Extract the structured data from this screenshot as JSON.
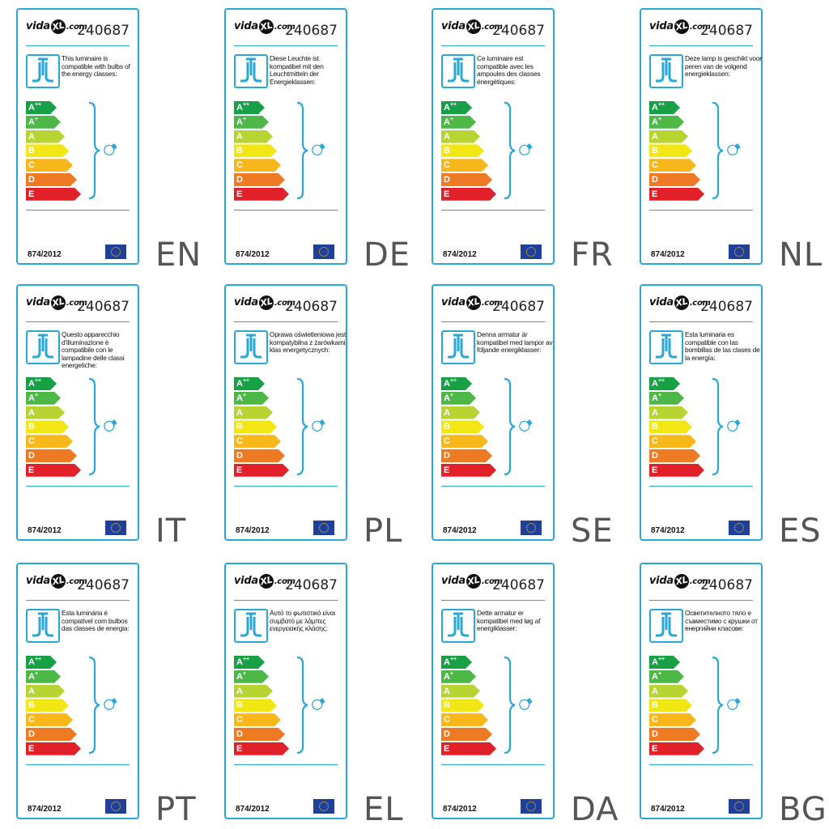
{
  "brand": {
    "logo_left": "vida",
    "logo_mid": "XL",
    "logo_right": ".com",
    "article_number": "240687"
  },
  "regulation": "874/2012",
  "energy_classes": [
    {
      "letter": "A",
      "sup": "++",
      "color": "#17a046"
    },
    {
      "letter": "A",
      "sup": "+",
      "color": "#4db848"
    },
    {
      "letter": "A",
      "sup": "",
      "color": "#b8d433"
    },
    {
      "letter": "B",
      "sup": "",
      "color": "#f2e615"
    },
    {
      "letter": "C",
      "sup": "",
      "color": "#f8b81c"
    },
    {
      "letter": "D",
      "sup": "",
      "color": "#ee7a23"
    },
    {
      "letter": "E",
      "sup": "",
      "color": "#e2202a"
    }
  ],
  "colors": {
    "frame": "#29a8d6",
    "eu_flag": "#1f3f9a",
    "eu_stars": "#ffd200",
    "language_code": "#555555"
  },
  "icons": {
    "lamp": "pendant-lamp-icon",
    "bulb": "light-bulb-icon",
    "flag": "eu-flag-icon"
  },
  "labels": [
    {
      "lang": "EN",
      "text": "This luminaire is compatible with bulbs of the energy classes:"
    },
    {
      "lang": "DE",
      "text": "Diese Leuchte ist kompatibel mit den Leuchtmitteln der Energieklassen:"
    },
    {
      "lang": "FR",
      "text": "Ce luminaire est compatible avec les ampoules des classes énergétiques:"
    },
    {
      "lang": "NL",
      "text": "Deze lamp is geschikt voor peren van de volgend energieklassen:"
    },
    {
      "lang": "IT",
      "text": "Questo apparecchio d'illuminazione è compatibile con le lampadine delle classi energetiche:"
    },
    {
      "lang": "PL",
      "text": "Oprawa oświetleniowa jest kompatybilna z żarówkami klas energetycznych:"
    },
    {
      "lang": "SE",
      "text": "Denna armatur är kompatibel med lampor av följande energiklasser:"
    },
    {
      "lang": "ES",
      "text": "Esta luminaria es compatible con las bombillas de las clases de la energía:"
    },
    {
      "lang": "PT",
      "text": "Esta luminária é compatível com bulbos das classes de energia:"
    },
    {
      "lang": "EL",
      "text": "Αυτό το φωτιστικό είναι συμβατό με λάμπες ενεργειακής κλάσης:"
    },
    {
      "lang": "DA",
      "text": "Dette armatur er kompatibel med løg af energiklasser:"
    },
    {
      "lang": "BG",
      "text": "Осветителното тяло е съвместимо с крушки от енергийни класове:"
    }
  ]
}
